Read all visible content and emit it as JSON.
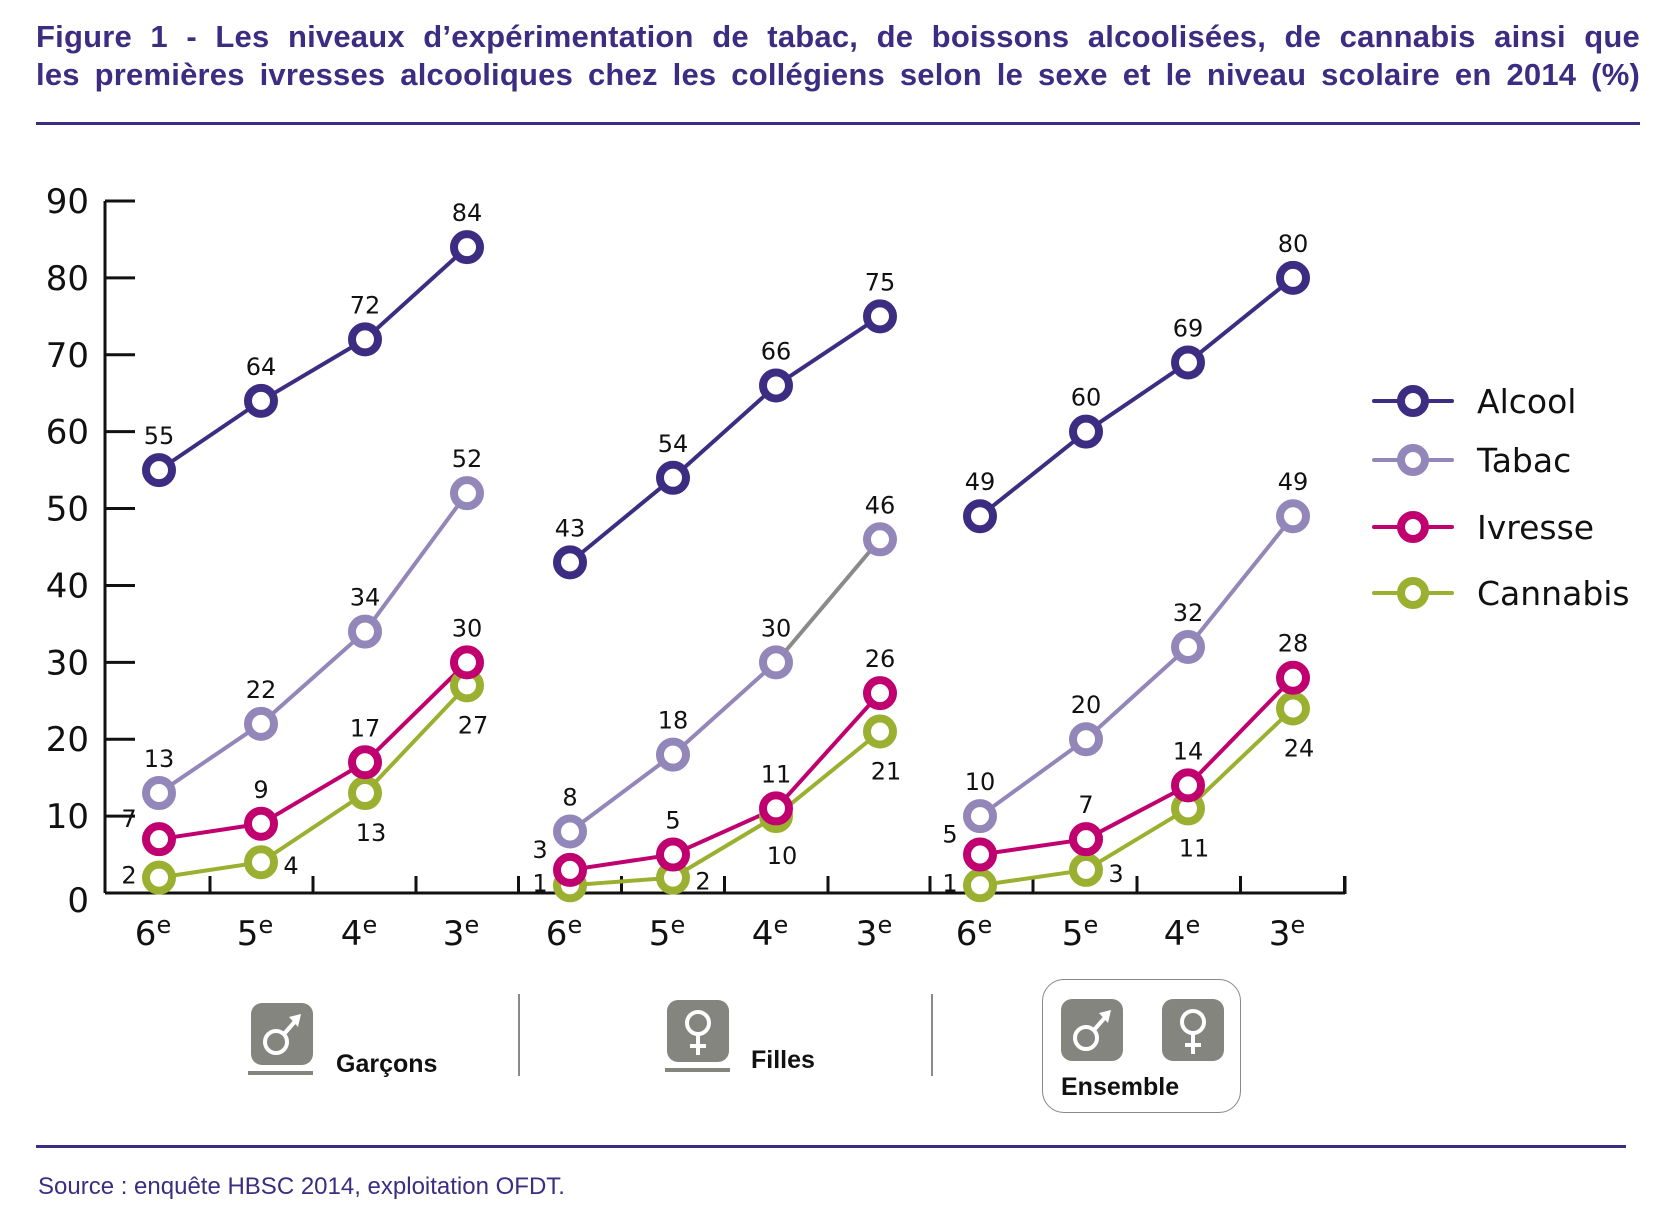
{
  "figure": {
    "title_line1": "Figure 1 - Les niveaux d’expérimentation de tabac, de boissons alcoolisées, de cannabis ainsi que",
    "title_line2": "les premières ivresses alcooliques chez les collégiens selon le sexe et le niveau scolaire en 2014 (%)",
    "source": "Source : enquête HBSC 2014, exploitation OFDT.",
    "groups": [
      {
        "label": "Garçons",
        "icon": "male-symbol-icon"
      },
      {
        "label": "Filles",
        "icon": "female-symbol-icon"
      },
      {
        "label": "Ensemble",
        "icon": "male-female-symbols-icon"
      }
    ]
  },
  "chart_data": {
    "type": "line",
    "title": "Les niveaux d’expérimentation de tabac, de boissons alcoolisées, de cannabis ainsi que les premières ivresses alcooliques chez les collégiens selon le sexe et le niveau scolaire en 2014 (%)",
    "xlabel": "",
    "ylabel": "%",
    "ylim": [
      0,
      90
    ],
    "yticks": [
      0,
      10,
      20,
      30,
      40,
      50,
      60,
      70,
      80,
      90
    ],
    "grid": false,
    "legend_position": "right",
    "panels": [
      "Garçons",
      "Filles",
      "Ensemble"
    ],
    "categories": [
      "6",
      "5",
      "4",
      "3"
    ],
    "category_suffix": "e",
    "series": [
      {
        "name": "Alcool",
        "color": "#3d2d82",
        "values": {
          "Garçons": [
            55,
            64,
            72,
            84
          ],
          "Filles": [
            43,
            54,
            66,
            75
          ],
          "Ensemble": [
            49,
            60,
            69,
            80
          ]
        }
      },
      {
        "name": "Tabac",
        "color": "#9287b8",
        "values": {
          "Garçons": [
            13,
            22,
            34,
            52
          ],
          "Filles": [
            8,
            18,
            30,
            46
          ],
          "Ensemble": [
            10,
            20,
            32,
            49
          ]
        }
      },
      {
        "name": "Ivresse",
        "color": "#c0006e",
        "values": {
          "Garçons": [
            7,
            9,
            17,
            30
          ],
          "Filles": [
            3,
            5,
            11,
            26
          ],
          "Ensemble": [
            5,
            7,
            14,
            28
          ]
        }
      },
      {
        "name": "Cannabis",
        "color": "#9bb030",
        "values": {
          "Garçons": [
            2,
            4,
            13,
            27
          ],
          "Filles": [
            1,
            2,
            10,
            21
          ],
          "Ensemble": [
            1,
            3,
            11,
            24
          ]
        }
      }
    ]
  }
}
